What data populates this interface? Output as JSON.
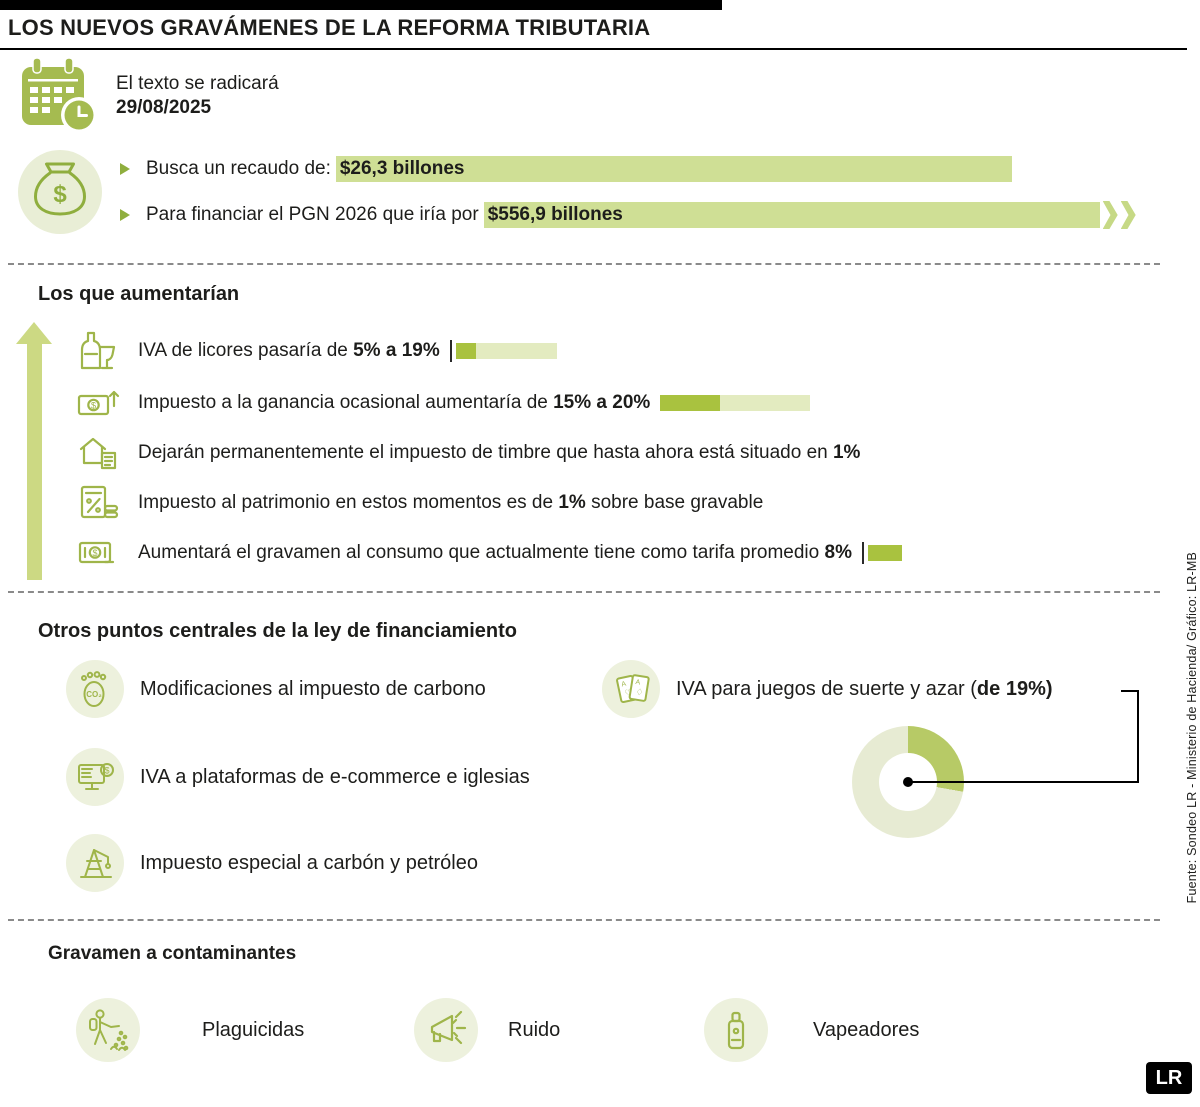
{
  "title": "LOS NUEVOS GRAVÁMENES DE LA REFORMA TRIBUTARIA",
  "colors": {
    "accent_bar_dark": "#a9c23f",
    "accent_bar_light": "#e3ebc0",
    "highlight": "#cfdf95",
    "icon_stroke": "#9fb54a",
    "icon_circle_bg": "#edf1dd",
    "donut_dark": "#b7ca66",
    "donut_light": "#e7ebd3"
  },
  "icons": [
    "calendar-clock-icon",
    "money-bag-icon",
    "bullet-triangle-icon",
    "up-arrow-icon",
    "liquor-icon",
    "capital-gain-icon",
    "stamp-tax-icon",
    "wealth-tax-icon",
    "consumption-tax-icon",
    "carbon-footprint-icon",
    "ecommerce-icon",
    "oil-pump-icon",
    "playing-cards-icon",
    "pesticide-sprayer-icon",
    "megaphone-icon",
    "vape-icon",
    "lr-logo"
  ],
  "intro": {
    "filing_label": "El texto se radicará",
    "filing_date": "29/08/2025",
    "bullets": [
      {
        "label": "Busca un recaudo de:",
        "value": "$26,3 billones"
      },
      {
        "label": "Para financiar el PGN 2026 que iría por",
        "value": "$556,9 billones"
      }
    ]
  },
  "increases": {
    "heading": "Los que aumentarían",
    "items": [
      {
        "prefix": "IVA de licores pasaría de ",
        "bold": "5% a 19%",
        "suffix": ""
      },
      {
        "prefix": "Impuesto a la ganancia ocasional aumentaría de ",
        "bold": "15% a 20%",
        "suffix": ""
      },
      {
        "prefix": "Dejarán permanentemente el impuesto de timbre que hasta ahora está situado en ",
        "bold": "1%",
        "suffix": ""
      },
      {
        "prefix": "Impuesto al patrimonio en estos momentos es de ",
        "bold": "1%",
        "suffix": " sobre base gravable"
      },
      {
        "prefix": "Aumentará el gravamen al consumo que actualmente tiene como tarifa promedio ",
        "bold": "8%",
        "suffix": ""
      }
    ]
  },
  "otros": {
    "heading": "Otros puntos centrales de la ley de financiamiento",
    "items": [
      "Modificaciones al impuesto de carbono",
      "IVA a plataformas de e-commerce e iglesias",
      "Impuesto especial a carbón y petróleo"
    ],
    "juegos": {
      "prefix": "IVA para juegos de suerte y azar (",
      "bold": "de 19%",
      "suffix": ")"
    }
  },
  "contaminantes": {
    "heading": "Gravamen a contaminantes",
    "items": [
      "Plaguicidas",
      "Ruido",
      "Vapeadores"
    ]
  },
  "source": "Fuente: Sondeo LR - Ministerio de Hacienda/ Gráfico: LR-MB",
  "logo": "LR",
  "chart_data": {
    "type": "bar",
    "title": "Tarifas que aumentarían (%)",
    "items": [
      {
        "label": "IVA de licores",
        "from": 5,
        "to": 19
      },
      {
        "label": "Impuesto a la ganancia ocasional",
        "from": 15,
        "to": 20
      },
      {
        "label": "Impuesto de timbre",
        "from": 1,
        "to": null
      },
      {
        "label": "Impuesto al patrimonio",
        "from": 1,
        "to": null
      },
      {
        "label": "Gravamen al consumo",
        "from": 8,
        "to": null
      }
    ],
    "donut": {
      "type": "pie",
      "label": "IVA para juegos de suerte y azar",
      "percent": 19,
      "slice_deg": 100
    }
  }
}
